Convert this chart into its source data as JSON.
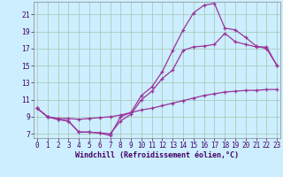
{
  "background_color": "#cceeff",
  "grid_color": "#aaccbb",
  "line_color": "#993399",
  "xlim": [
    -0.3,
    23.3
  ],
  "ylim": [
    6.5,
    22.5
  ],
  "xticks": [
    0,
    1,
    2,
    3,
    4,
    5,
    6,
    7,
    8,
    9,
    10,
    11,
    12,
    13,
    14,
    15,
    16,
    17,
    18,
    19,
    20,
    21,
    22,
    23
  ],
  "yticks": [
    7,
    9,
    11,
    13,
    15,
    17,
    19,
    21
  ],
  "xlabel": "Windchill (Refroidissement éolien,°C)",
  "curve_upper_x": [
    0,
    1,
    2,
    3,
    4,
    5,
    6,
    7,
    8,
    9,
    10,
    11,
    12,
    13,
    14,
    15,
    16,
    17,
    18,
    19,
    20,
    21,
    22,
    23
  ],
  "curve_upper_y": [
    10.0,
    9.0,
    8.7,
    8.5,
    7.2,
    7.2,
    7.1,
    6.8,
    9.0,
    9.5,
    11.5,
    12.5,
    14.3,
    16.8,
    19.2,
    21.2,
    22.1,
    22.3,
    19.4,
    19.2,
    18.3,
    17.3,
    17.0,
    15.0
  ],
  "curve_mid_x": [
    0,
    1,
    2,
    3,
    4,
    5,
    6,
    7,
    8,
    9,
    10,
    11,
    12,
    13,
    14,
    15,
    16,
    17,
    18,
    19,
    20,
    21,
    22,
    23
  ],
  "curve_mid_y": [
    10.0,
    9.0,
    8.7,
    8.5,
    7.2,
    7.2,
    7.1,
    7.0,
    8.5,
    9.3,
    11.0,
    12.0,
    13.5,
    14.5,
    16.8,
    17.2,
    17.3,
    17.5,
    18.8,
    17.8,
    17.5,
    17.2,
    17.2,
    15.0
  ],
  "curve_lower_x": [
    0,
    1,
    2,
    3,
    4,
    5,
    6,
    7,
    8,
    9,
    10,
    11,
    12,
    13,
    14,
    15,
    16,
    17,
    18,
    19,
    20,
    21,
    22,
    23
  ],
  "curve_lower_y": [
    10.0,
    9.0,
    8.8,
    8.8,
    8.7,
    8.8,
    8.9,
    9.0,
    9.2,
    9.5,
    9.8,
    10.0,
    10.3,
    10.6,
    10.9,
    11.2,
    11.5,
    11.7,
    11.9,
    12.0,
    12.1,
    12.1,
    12.2,
    12.2
  ],
  "tick_fontsize": 5.5,
  "xlabel_fontsize": 6.0
}
